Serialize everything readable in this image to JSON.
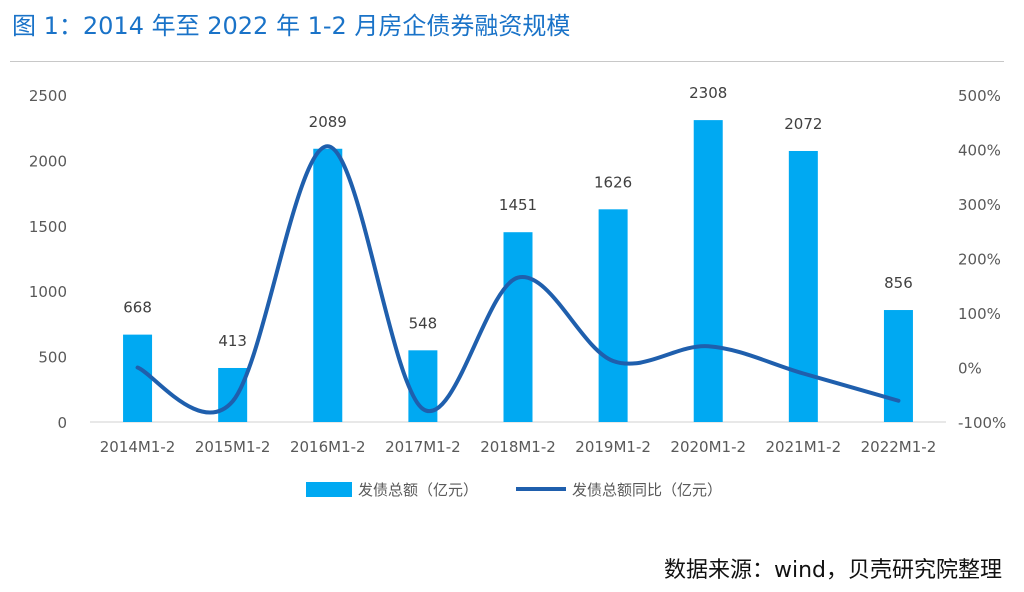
{
  "figure": {
    "title": "图 1：2014 年至 2022 年 1-2 月房企债券融资规模",
    "source": "数据来源：wind，贝壳研究院整理"
  },
  "colors": {
    "title": "#1a73c8",
    "bar": "#00a9f2",
    "line": "#1f5fad",
    "axis_text": "#595959",
    "label_text": "#404040"
  },
  "chart_data": {
    "type": "bar",
    "categories": [
      "2014M1-2",
      "2015M1-2",
      "2016M1-2",
      "2017M1-2",
      "2018M1-2",
      "2019M1-2",
      "2020M1-2",
      "2021M1-2",
      "2022M1-2"
    ],
    "series": [
      {
        "name": "发债总额（亿元）",
        "type": "bar",
        "axis": "left",
        "values": [
          668,
          413,
          2089,
          548,
          1451,
          1626,
          2308,
          2072,
          856
        ],
        "data_labels": [
          "668",
          "413",
          "2089",
          "548",
          "1451",
          "1626",
          "2308",
          "2072",
          "856"
        ]
      },
      {
        "name": "发债总额同比（亿元）",
        "type": "line",
        "axis": "right",
        "smooth": true,
        "values": [
          0,
          -62,
          406,
          -76,
          165,
          12,
          39,
          -11,
          -61
        ]
      }
    ],
    "ylim": [
      0,
      2500
    ],
    "yticks": [
      "0",
      "500",
      "1000",
      "1500",
      "2000",
      "2500"
    ],
    "y2lim": [
      -100,
      500
    ],
    "y2ticks": [
      "-100%",
      "0%",
      "100%",
      "200%",
      "300%",
      "400%",
      "500%"
    ],
    "grid": false,
    "legend_position": "bottom"
  }
}
